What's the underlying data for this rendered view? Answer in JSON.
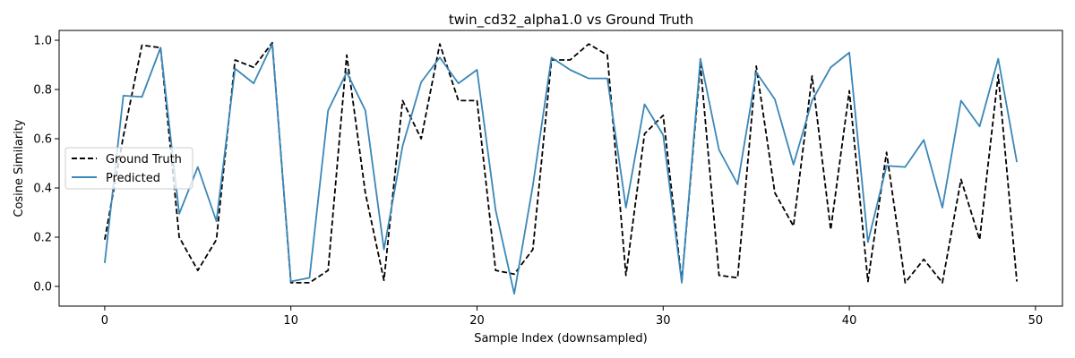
{
  "chart_data": {
    "type": "line",
    "title": "twin_cd32_alpha1.0 vs Ground Truth",
    "xlabel": "Sample Index (downsampled)",
    "ylabel": "Cosine Similarity",
    "xlim": [
      -2.45,
      51.45
    ],
    "ylim": [
      -0.08,
      1.04
    ],
    "xticks": [
      0,
      10,
      20,
      30,
      40,
      50
    ],
    "xtick_labels": [
      "0",
      "10",
      "20",
      "30",
      "40",
      "50"
    ],
    "yticks": [
      0.0,
      0.2,
      0.4,
      0.6,
      0.8,
      1.0
    ],
    "ytick_labels": [
      "0.0",
      "0.2",
      "0.4",
      "0.6",
      "0.8",
      "1.0"
    ],
    "grid": false,
    "legend_position": "center-left",
    "x": [
      0,
      1,
      2,
      3,
      4,
      5,
      6,
      7,
      8,
      9,
      10,
      11,
      12,
      13,
      14,
      15,
      16,
      17,
      18,
      19,
      20,
      21,
      22,
      23,
      24,
      25,
      26,
      27,
      28,
      29,
      30,
      31,
      32,
      33,
      34,
      35,
      36,
      37,
      38,
      39,
      40,
      41,
      42,
      43,
      44,
      45,
      46,
      47,
      48,
      49
    ],
    "series": [
      {
        "name": "Ground Truth",
        "color": "#000000",
        "style": "dashed",
        "values": [
          0.19,
          0.61,
          0.98,
          0.97,
          0.2,
          0.065,
          0.19,
          0.92,
          0.89,
          0.99,
          0.015,
          0.015,
          0.065,
          0.94,
          0.38,
          0.025,
          0.755,
          0.6,
          0.985,
          0.755,
          0.755,
          0.065,
          0.05,
          0.15,
          0.92,
          0.92,
          0.985,
          0.94,
          0.045,
          0.62,
          0.695,
          0.02,
          0.9,
          0.045,
          0.035,
          0.895,
          0.38,
          0.245,
          0.855,
          0.23,
          0.795,
          0.02,
          0.545,
          0.015,
          0.11,
          0.015,
          0.435,
          0.19,
          0.86,
          0.02
        ]
      },
      {
        "name": "Predicted",
        "color": "#3a87b8",
        "style": "solid",
        "values": [
          0.095,
          0.775,
          0.77,
          0.97,
          0.295,
          0.485,
          0.265,
          0.885,
          0.825,
          0.985,
          0.02,
          0.035,
          0.715,
          0.87,
          0.715,
          0.15,
          0.57,
          0.83,
          0.93,
          0.825,
          0.88,
          0.31,
          -0.03,
          0.41,
          0.93,
          0.88,
          0.845,
          0.845,
          0.32,
          0.74,
          0.615,
          0.015,
          0.925,
          0.555,
          0.415,
          0.87,
          0.76,
          0.495,
          0.755,
          0.89,
          0.95,
          0.18,
          0.49,
          0.485,
          0.595,
          0.32,
          0.755,
          0.65,
          0.925,
          0.505
        ]
      }
    ]
  }
}
